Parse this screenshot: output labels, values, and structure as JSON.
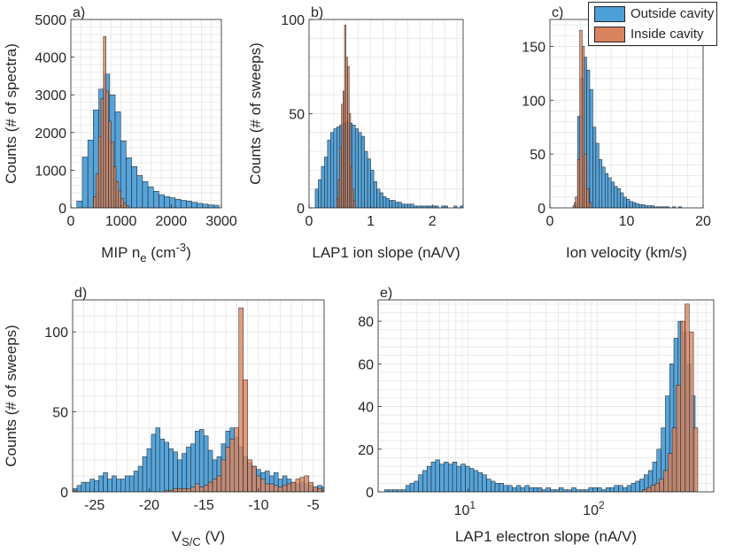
{
  "legend": {
    "items": [
      {
        "label": "Outside cavity",
        "color": "#4d9fd8"
      },
      {
        "label": "Inside cavity",
        "color": "#d9845f"
      }
    ]
  },
  "chart_data": [
    {
      "id": "a",
      "type": "histogram",
      "panel_label": "a)",
      "xlabel": "MIP n_e (cm^-3)",
      "xlabel_parts": {
        "main": "MIP n",
        "sub": "e",
        "mid": " (cm",
        "sup": "-3",
        "end": ")"
      },
      "ylabel": "Counts (# of spectra)",
      "xscale": "linear",
      "xlim": [
        0,
        3000
      ],
      "ylim": [
        0,
        5000
      ],
      "xticks": [
        0,
        1000,
        2000,
        3000
      ],
      "xtick_labels": [
        "0",
        "1000",
        "2000",
        "3000"
      ],
      "yticks": [
        0,
        1000,
        2000,
        3000,
        4000,
        5000
      ],
      "ytick_labels": [
        "0",
        "1000",
        "2000",
        "3000",
        "4000",
        "5000"
      ],
      "series": [
        {
          "name": "Outside cavity",
          "bin_start": 120,
          "bin_width": 109,
          "values": [
            180,
            1350,
            1800,
            2600,
            3150,
            3550,
            3000,
            2550,
            1780,
            1330,
            1100,
            860,
            700,
            560,
            440,
            350,
            300,
            270,
            230,
            200,
            180,
            150,
            120,
            100,
            80,
            70
          ]
        },
        {
          "name": "Inside cavity",
          "bin_start": 450,
          "bin_width": 50,
          "values": [
            300,
            900,
            1900,
            2900,
            4550,
            3100,
            2300,
            1750,
            1100,
            700,
            450,
            250,
            120,
            60
          ]
        }
      ]
    },
    {
      "id": "b",
      "type": "histogram",
      "panel_label": "b)",
      "xlabel": "LAP1 ion slope (nA/V)",
      "ylabel": "Counts (# of sweeps)",
      "xscale": "linear",
      "xlim": [
        0,
        2.5
      ],
      "ylim": [
        0,
        100
      ],
      "xticks": [
        0,
        1,
        2
      ],
      "xtick_labels": [
        "0",
        "1",
        "2"
      ],
      "yticks": [
        0,
        50,
        100
      ],
      "ytick_labels": [
        "0",
        "50",
        "100"
      ],
      "series": [
        {
          "name": "Outside cavity",
          "bin_start": 0.1,
          "bin_width": 0.05,
          "values": [
            10,
            15,
            22,
            27,
            36,
            40,
            42,
            43,
            44,
            45,
            46,
            45,
            44,
            42,
            40,
            38,
            30,
            26,
            20,
            14,
            10,
            8,
            6,
            5,
            4,
            4,
            3,
            3,
            2,
            2,
            2,
            2,
            1,
            1,
            1,
            1,
            1,
            1,
            1,
            1,
            0,
            1,
            1,
            0,
            0,
            1,
            0,
            1,
            0
          ]
        },
        {
          "name": "Inside cavity",
          "bin_start": 0.45,
          "bin_width": 0.025,
          "values": [
            5,
            15,
            32,
            55,
            62,
            97,
            80,
            75,
            50,
            22,
            10,
            4
          ]
        }
      ]
    },
    {
      "id": "c",
      "type": "histogram",
      "panel_label": "c)",
      "xlabel": "Ion velocity (km/s)",
      "ylabel": "",
      "xscale": "linear",
      "xlim": [
        0,
        20
      ],
      "ylim": [
        0,
        175
      ],
      "xticks": [
        0,
        10,
        20
      ],
      "xtick_labels": [
        "0",
        "10",
        "20"
      ],
      "yticks": [
        0,
        50,
        100,
        150
      ],
      "ytick_labels": [
        "0",
        "50",
        "100",
        "150"
      ],
      "series": [
        {
          "name": "Outside cavity",
          "bin_start": 3.2,
          "bin_width": 0.4,
          "values": [
            5,
            85,
            120,
            140,
            128,
            110,
            75,
            60,
            45,
            38,
            32,
            28,
            24,
            20,
            18,
            14,
            10,
            8,
            6,
            5,
            4,
            3,
            3,
            2,
            2,
            2,
            1,
            1,
            1,
            1,
            1,
            0,
            1,
            0,
            1
          ]
        },
        {
          "name": "Inside cavity",
          "bin_start": 3.0,
          "bin_width": 0.3,
          "values": [
            2,
            10,
            45,
            165,
            150,
            50,
            18,
            5
          ]
        }
      ]
    },
    {
      "id": "d",
      "type": "histogram",
      "panel_label": "d)",
      "xlabel": "V_S/C (V)",
      "xlabel_parts": {
        "main": "V",
        "sub": "S/C",
        "end": " (V)"
      },
      "ylabel": "Counts (# of sweeps)",
      "xscale": "linear",
      "xlim": [
        -27,
        -4
      ],
      "ylim": [
        0,
        120
      ],
      "xticks": [
        -25,
        -20,
        -15,
        -10,
        -5
      ],
      "xtick_labels": [
        "-25",
        "-20",
        "-15",
        "-10",
        "-5"
      ],
      "yticks": [
        0,
        50,
        100
      ],
      "ytick_labels": [
        "0",
        "50",
        "100"
      ],
      "series": [
        {
          "name": "Outside cavity",
          "bin_start": -27,
          "bin_width": 0.4,
          "values": [
            2,
            4,
            6,
            6,
            8,
            7,
            10,
            12,
            8,
            10,
            8,
            8,
            10,
            10,
            13,
            16,
            22,
            27,
            36,
            40,
            33,
            31,
            27,
            25,
            20,
            24,
            28,
            30,
            38,
            39,
            35,
            26,
            20,
            22,
            30,
            38,
            40,
            34,
            28,
            22,
            18,
            16,
            14,
            12,
            13,
            10,
            12,
            8,
            10,
            8,
            6,
            5,
            6,
            5,
            4,
            3,
            4,
            3
          ]
        },
        {
          "name": "Inside cavity",
          "bin_start": -27,
          "bin_width": 0.4,
          "values": [
            1,
            0,
            0,
            0,
            0,
            0,
            0,
            0,
            0,
            0,
            0,
            0,
            0,
            0,
            0,
            0,
            0,
            0,
            0,
            0,
            0,
            1,
            1,
            2,
            2,
            2,
            2,
            3,
            5,
            3,
            4,
            6,
            8,
            10,
            20,
            28,
            33,
            40,
            115,
            70,
            20,
            16,
            10,
            8,
            5,
            5,
            4,
            3,
            4,
            5,
            6,
            8,
            9,
            10,
            6,
            3,
            2,
            1
          ]
        }
      ]
    },
    {
      "id": "e",
      "type": "histogram",
      "panel_label": "e)",
      "xlabel": "LAP1 electron slope (nA/V)",
      "ylabel": "",
      "xscale": "log",
      "xlim": [
        2,
        800
      ],
      "ylim": [
        0,
        90
      ],
      "xticks": [
        10,
        100
      ],
      "xtick_labels": [
        "10^1",
        "10^2"
      ],
      "yticks": [
        0,
        20,
        40,
        60,
        80
      ],
      "ytick_labels": [
        "0",
        "20",
        "40",
        "60",
        "80"
      ],
      "series": [
        {
          "name": "Outside cavity",
          "bin_start_log10": 0.35,
          "bin_width_log10": 0.033,
          "values": [
            1,
            1,
            1,
            1,
            1,
            3,
            4,
            5,
            8,
            10,
            12,
            14,
            15,
            13,
            14,
            13,
            14,
            12,
            13,
            12,
            11,
            10,
            9,
            8,
            6,
            5,
            4,
            4,
            3,
            3,
            2,
            3,
            2,
            3,
            2,
            2,
            2,
            1,
            2,
            1,
            1,
            2,
            1,
            1,
            2,
            1,
            1,
            1,
            2,
            2,
            2,
            1,
            2,
            2,
            3,
            3,
            2,
            3,
            4,
            5,
            6,
            8,
            10,
            14,
            20,
            30,
            45,
            60,
            72,
            80,
            75,
            60,
            45
          ]
        },
        {
          "name": "Inside cavity",
          "bin_start_log10": 2.35,
          "bin_width_log10": 0.033,
          "values": [
            1,
            2,
            3,
            4,
            6,
            10,
            18,
            30,
            50,
            80,
            88,
            75,
            30
          ]
        }
      ]
    }
  ]
}
